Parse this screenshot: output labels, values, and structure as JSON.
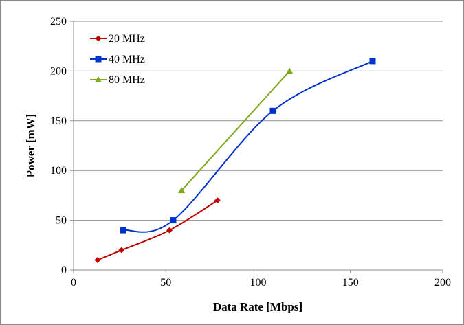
{
  "chart_data": {
    "type": "scatter",
    "title": "",
    "xlabel": "Data Rate [Mbps]",
    "ylabel": "Power [mW]",
    "xlim": [
      0,
      200
    ],
    "ylim": [
      0,
      250
    ],
    "xticks": [
      0,
      50,
      100,
      150,
      200
    ],
    "yticks": [
      0,
      50,
      100,
      150,
      200,
      250
    ],
    "grid": "horizontal",
    "legend_position": "top-left",
    "series": [
      {
        "name": "20 MHz",
        "color": "#C00000",
        "marker": "diamond",
        "smooth": true,
        "x": [
          13,
          26,
          52,
          78
        ],
        "y": [
          10,
          20,
          40,
          70
        ]
      },
      {
        "name": "40 MHz",
        "color": "#0033CC",
        "marker": "square",
        "smooth": true,
        "x": [
          27,
          54,
          108,
          162
        ],
        "y": [
          40,
          50,
          160,
          210
        ]
      },
      {
        "name": "80 MHz",
        "color": "#7FA81A",
        "marker": "triangle",
        "smooth": false,
        "x": [
          58.5,
          117
        ],
        "y": [
          80,
          200
        ]
      }
    ]
  }
}
